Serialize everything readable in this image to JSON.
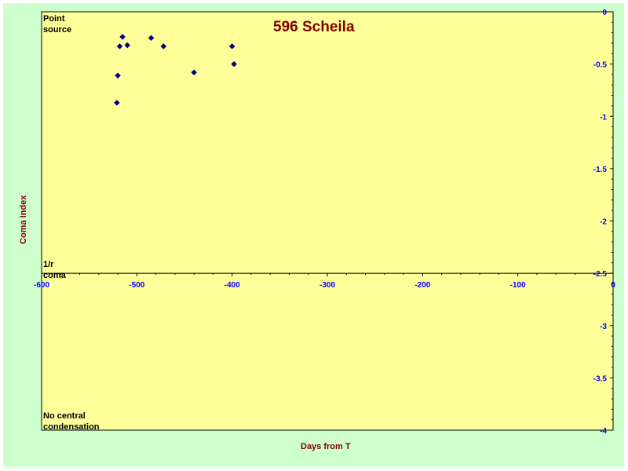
{
  "chart_data": {
    "type": "scatter",
    "title": "596 Scheila",
    "xlabel": "Days from T",
    "ylabel": "Coma Index",
    "xlim": [
      -600,
      0
    ],
    "ylim": [
      -4,
      0
    ],
    "x_ticks": [
      -600,
      -500,
      -400,
      -300,
      -200,
      -100,
      0
    ],
    "y_ticks": [
      0,
      -0.5,
      -1,
      -1.5,
      -2,
      -2.5,
      -3,
      -3.5,
      -4
    ],
    "y_tick_labels": [
      "0",
      "-0.5",
      "-1",
      "-1.5",
      "-2",
      "-2.5",
      "-3",
      "-3.5",
      "-4"
    ],
    "annotations": {
      "top": [
        "Point",
        "source"
      ],
      "middle": [
        "1/r",
        "coma"
      ],
      "bottom": [
        "No central",
        "condensation"
      ]
    },
    "grid": false,
    "series": [
      {
        "marker": "diamond",
        "x": [
          -520,
          -518,
          -515,
          -510,
          -485,
          -472,
          -440,
          -400,
          -398
        ],
        "y": [
          -0.61,
          -0.33,
          -0.24,
          -0.32,
          -0.25,
          -0.33,
          -0.58,
          -0.33,
          -0.5
        ]
      },
      {
        "marker": "diamond",
        "x": [
          -521
        ],
        "y": [
          -0.87
        ]
      }
    ],
    "colors": {
      "plot_background": "#ffff99",
      "page_background": "#ccffcc",
      "marker": "#000080",
      "tick_labels": "#0000ff",
      "title": "#800000",
      "axis_labels": "#800000"
    }
  }
}
